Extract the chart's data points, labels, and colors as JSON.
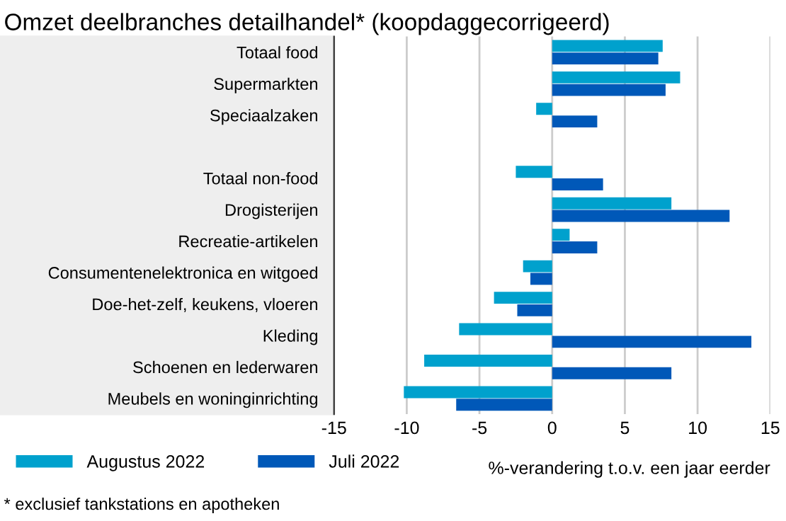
{
  "chart_data": {
    "type": "bar",
    "orientation": "horizontal",
    "title": "Omzet deelbranches detailhandel* (koopdaggecorrigeerd)",
    "categories": [
      "Totaal food",
      "Supermarkten",
      "Speciaalzaken",
      null,
      "Totaal non-food",
      "Drogisterijen",
      "Recreatie-artikelen",
      "Consumentenelektronica en witgoed",
      "Doe-het-zelf, keukens, vloeren",
      "Kleding",
      "Schoenen en lederwaren",
      "Meubels en woninginrichting"
    ],
    "series": [
      {
        "name": "Augustus 2022",
        "color": "#00a1cd",
        "values": [
          7.6,
          8.8,
          -1.1,
          null,
          -2.5,
          8.2,
          1.2,
          -2.0,
          -4.0,
          -6.4,
          -8.8,
          -10.2
        ]
      },
      {
        "name": "Juli 2022",
        "color": "#0058b8",
        "values": [
          7.3,
          7.8,
          3.1,
          null,
          3.5,
          12.2,
          3.1,
          -1.5,
          -2.4,
          13.7,
          8.2,
          -6.6
        ]
      }
    ],
    "xlabel": "%-verandering t.o.v. een jaar eerder",
    "xlim": [
      -15,
      15
    ],
    "xticks": [
      -15,
      -10,
      -5,
      0,
      5,
      10,
      15
    ],
    "grid": "x",
    "legend": "bottom left",
    "annotations": [
      "* exclusief tankstations en apotheken"
    ]
  }
}
